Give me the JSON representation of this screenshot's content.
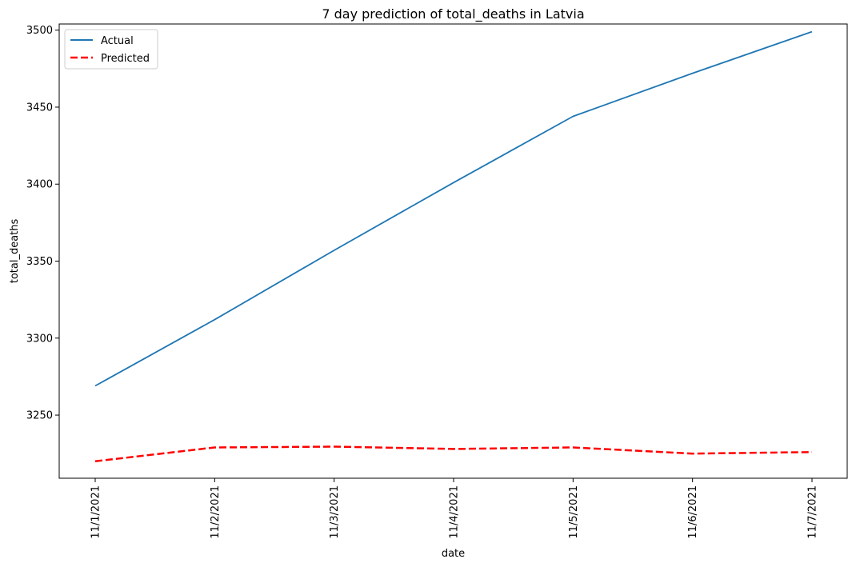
{
  "chart_data": {
    "type": "line",
    "title": "7 day prediction of total_deaths in Latvia",
    "xlabel": "date",
    "ylabel": "total_deaths",
    "categories": [
      "11/1/2021",
      "11/2/2021",
      "11/3/2021",
      "11/4/2021",
      "11/5/2021",
      "11/6/2021",
      "11/7/2021"
    ],
    "yticks": [
      3250,
      3300,
      3350,
      3400,
      3450,
      3500
    ],
    "ylim": [
      3209,
      3504
    ],
    "legend_position": "top-left",
    "grid": false,
    "series": [
      {
        "name": "Actual",
        "color": "#1f77b4",
        "style": "solid",
        "values": [
          3269,
          3312,
          3357,
          3401,
          3444,
          3472,
          3499
        ]
      },
      {
        "name": "Predicted",
        "color": "#ff0000",
        "style": "dashed",
        "values": [
          3220,
          3229,
          3229.5,
          3228,
          3229,
          3225,
          3226
        ]
      }
    ]
  }
}
